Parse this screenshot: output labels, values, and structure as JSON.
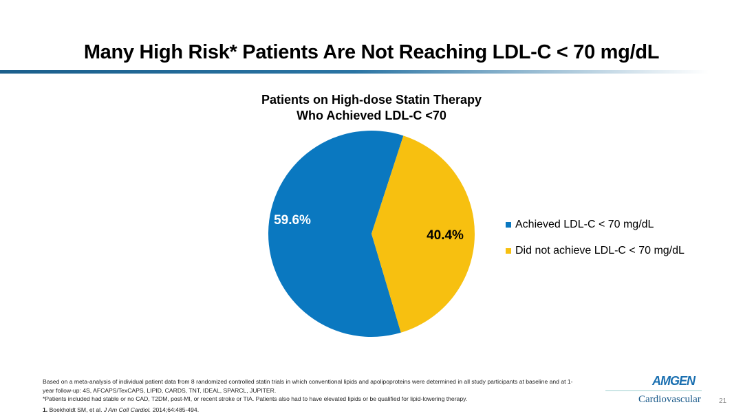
{
  "slide": {
    "title": "Many High Risk* Patients Are Not Reaching LDL-C < 70 mg/dL",
    "page_number": "21",
    "footnotes": [
      "Based on a meta-analysis of individual patient data from 8 randomized controlled statin trials in which conventional lipids and apolipoproteins were determined in all study participants at baseline and at 1-year follow-up: 4S, AFCAPS/TexCAPS, LIPID, CARDS, TNT, IDEAL, SPARCL, JUPITER.",
      "*Patients included had stable or no CAD, T2DM, post-MI, or recent stroke or TIA. Patients also had to have elevated lipids or be qualified for lipid-lowering therapy."
    ],
    "reference": {
      "num": "1.",
      "authors": "Boekholdt SM, et al.",
      "journal": "J Am Coll Cardiol.",
      "citation": "2014;64:485-494."
    },
    "logo": {
      "brand": "AMGEN",
      "division": "Cardiovascular"
    }
  },
  "chart_data": {
    "type": "pie",
    "title_lines": [
      "Patients on High-dose Statin Therapy",
      "Who Achieved LDL-C <70"
    ],
    "slices": [
      {
        "name": "Achieved LDL-C < 70 mg/dL",
        "value": 59.6,
        "label": "59.6%",
        "color": "#0a78c0"
      },
      {
        "name": "Did not achieve LDL-C < 70 mg/dL",
        "value": 40.4,
        "label": "40.4%",
        "color": "#f7c010"
      }
    ],
    "legend_position": "right"
  }
}
